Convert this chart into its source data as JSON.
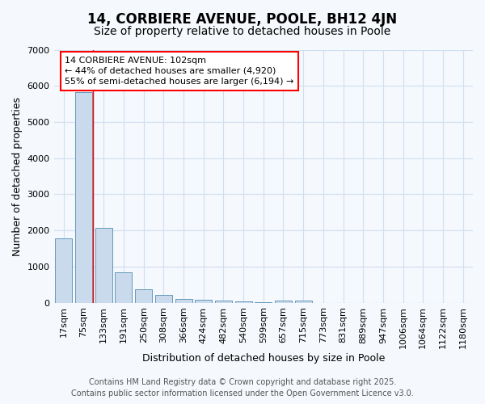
{
  "title": "14, CORBIERE AVENUE, POOLE, BH12 4JN",
  "subtitle": "Size of property relative to detached houses in Poole",
  "xlabel": "Distribution of detached houses by size in Poole",
  "ylabel": "Number of detached properties",
  "categories": [
    "17sqm",
    "75sqm",
    "133sqm",
    "191sqm",
    "250sqm",
    "308sqm",
    "366sqm",
    "424sqm",
    "482sqm",
    "540sqm",
    "599sqm",
    "657sqm",
    "715sqm",
    "773sqm",
    "831sqm",
    "889sqm",
    "947sqm",
    "1006sqm",
    "1064sqm",
    "1122sqm",
    "1180sqm"
  ],
  "values": [
    1780,
    5820,
    2080,
    830,
    360,
    220,
    110,
    80,
    65,
    35,
    20,
    50,
    50,
    0,
    0,
    0,
    0,
    0,
    0,
    0,
    0
  ],
  "bar_color": "#c8daeb",
  "bar_edge_color": "#6699bb",
  "red_line_x": 1.45,
  "annotation_text": "14 CORBIERE AVENUE: 102sqm\n← 44% of detached houses are smaller (4,920)\n55% of semi-detached houses are larger (6,194) →",
  "annotation_box_color": "white",
  "annotation_box_edge": "red",
  "ylim": [
    0,
    7000
  ],
  "yticks": [
    0,
    1000,
    2000,
    3000,
    4000,
    5000,
    6000,
    7000
  ],
  "footer_line1": "Contains HM Land Registry data © Crown copyright and database right 2025.",
  "footer_line2": "Contains public sector information licensed under the Open Government Licence v3.0.",
  "bg_color": "#f5f8fc",
  "grid_color": "#d0dff0",
  "title_fontsize": 12,
  "subtitle_fontsize": 10,
  "label_fontsize": 9,
  "tick_fontsize": 8,
  "footer_fontsize": 7,
  "annot_fontsize": 8
}
